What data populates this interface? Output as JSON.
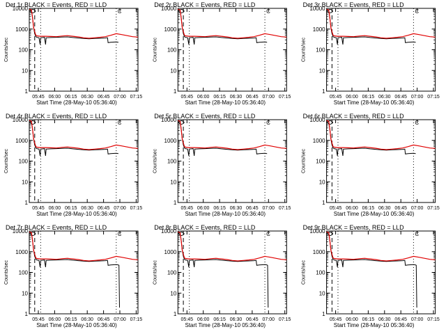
{
  "chart_data": [
    {
      "type": "line",
      "title": "Det 1r BLACK = Events, RED = LLD",
      "xlabel": "Start Time (28-May-10 05:36:40)",
      "ylabel": "Counts/sec",
      "xticks": [
        "05:45",
        "06:00",
        "06:15",
        "06:30",
        "06:45",
        "07:00",
        "07:15"
      ],
      "yticks": [
        "1",
        "10",
        "100",
        "1000",
        "10000"
      ],
      "ylim": [
        1,
        10000
      ],
      "yscale": "log",
      "x_minutes": [
        0,
        100
      ],
      "dashed_x": 5,
      "dotted_x": [
        10.5,
        80
      ],
      "series": [
        {
          "name": "Events",
          "color": "#000000"
        },
        {
          "name": "LLD",
          "color": "#e00000"
        }
      ]
    },
    {
      "type": "line",
      "title": "Det 2r BLACK = Events, RED = LLD",
      "xlabel": "Start Time (28-May-10 05:36:40)",
      "ylabel": "Counts/sec",
      "xticks": [
        "05:45",
        "06:00",
        "06:15",
        "06:30",
        "06:45",
        "07:00",
        "07:15"
      ],
      "yticks": [
        "1",
        "10",
        "100",
        "1000",
        "10000"
      ],
      "ylim": [
        1,
        10000
      ],
      "yscale": "log",
      "x_minutes": [
        0,
        100
      ],
      "dashed_x": 5,
      "dotted_x": [
        10.5,
        80
      ],
      "series": [
        {
          "name": "Events",
          "color": "#000000"
        },
        {
          "name": "LLD",
          "color": "#e00000"
        }
      ]
    },
    {
      "type": "line",
      "title": "Det 3r BLACK = Events, RED = LLD",
      "xlabel": "Start Time (28-May-10 05:36:40)",
      "ylabel": "Counts/sec",
      "xticks": [
        "05:45",
        "06:00",
        "06:15",
        "06:30",
        "06:45",
        "07:00",
        "07:15"
      ],
      "yticks": [
        "1",
        "10",
        "100",
        "1000",
        "10000"
      ],
      "ylim": [
        1,
        10000
      ],
      "yscale": "log",
      "x_minutes": [
        0,
        100
      ],
      "dashed_x": 5,
      "dotted_x": [
        10.5,
        80
      ],
      "series": [
        {
          "name": "Events",
          "color": "#000000"
        },
        {
          "name": "LLD",
          "color": "#e00000"
        }
      ]
    },
    {
      "type": "line",
      "title": "Det 4r BLACK = Events, RED = LLD",
      "xlabel": "Start Time (28-May-10 05:36:40)",
      "ylabel": "Counts/sec",
      "xticks": [
        "05:45",
        "06:00",
        "06:15",
        "06:30",
        "06:45",
        "07:00",
        "07:15"
      ],
      "yticks": [
        "1",
        "10",
        "100",
        "1000",
        "10000"
      ],
      "ylim": [
        1,
        10000
      ],
      "yscale": "log",
      "x_minutes": [
        0,
        100
      ],
      "dashed_x": 5,
      "dotted_x": [
        10.5,
        80
      ],
      "series": [
        {
          "name": "Events",
          "color": "#000000"
        },
        {
          "name": "LLD",
          "color": "#e00000"
        }
      ]
    },
    {
      "type": "line",
      "title": "Det 5r BLACK = Events, RED = LLD",
      "xlabel": "Start Time (28-May-10 05:36:40)",
      "ylabel": "Counts/sec",
      "xticks": [
        "05:45",
        "06:00",
        "06:15",
        "06:30",
        "06:45",
        "07:00",
        "07:15"
      ],
      "yticks": [
        "1",
        "10",
        "100",
        "1000",
        "10000"
      ],
      "ylim": [
        1,
        10000
      ],
      "yscale": "log",
      "x_minutes": [
        0,
        100
      ],
      "dashed_x": 5,
      "dotted_x": [
        10.5,
        80
      ],
      "series": [
        {
          "name": "Events",
          "color": "#000000"
        },
        {
          "name": "LLD",
          "color": "#e00000"
        }
      ]
    },
    {
      "type": "line",
      "title": "Det 6r BLACK = Events, RED = LLD",
      "xlabel": "Start Time (28-May-10 05:36:40)",
      "ylabel": "Counts/sec",
      "xticks": [
        "05:45",
        "06:00",
        "06:15",
        "06:30",
        "06:45",
        "07:00",
        "07:15"
      ],
      "yticks": [
        "1",
        "10",
        "100",
        "1000",
        "10000"
      ],
      "ylim": [
        1,
        10000
      ],
      "yscale": "log",
      "x_minutes": [
        0,
        100
      ],
      "dashed_x": 5,
      "dotted_x": [
        10.5,
        80
      ],
      "series": [
        {
          "name": "Events",
          "color": "#000000"
        },
        {
          "name": "LLD",
          "color": "#e00000"
        }
      ]
    },
    {
      "type": "line",
      "title": "Det 7r BLACK = Events, RED = LLD",
      "xlabel": "Start Time (28-May-10 05:36:40)",
      "ylabel": "Counts/sec",
      "xticks": [
        "05:45",
        "06:00",
        "06:15",
        "06:30",
        "06:45",
        "07:00",
        "07:15"
      ],
      "yticks": [
        "1",
        "10",
        "100",
        "1000",
        "10000"
      ],
      "ylim": [
        1,
        10000
      ],
      "yscale": "log",
      "x_minutes": [
        0,
        100
      ],
      "dashed_x": 5,
      "dotted_x": [
        10.5,
        80
      ],
      "series": [
        {
          "name": "Events",
          "color": "#000000"
        },
        {
          "name": "LLD",
          "color": "#e00000"
        }
      ]
    },
    {
      "type": "line",
      "title": "Det 8r BLACK = Events, RED = LLD",
      "xlabel": "Start Time (28-May-10 05:36:40)",
      "ylabel": "Counts/sec",
      "xticks": [
        "05:45",
        "06:00",
        "06:15",
        "06:30",
        "06:45",
        "07:00",
        "07:15"
      ],
      "yticks": [
        "1",
        "10",
        "100",
        "1000",
        "10000"
      ],
      "ylim": [
        1,
        10000
      ],
      "yscale": "log",
      "x_minutes": [
        0,
        100
      ],
      "dashed_x": 5,
      "dotted_x": [
        10.5,
        80
      ],
      "series": [
        {
          "name": "Events",
          "color": "#000000"
        },
        {
          "name": "LLD",
          "color": "#e00000"
        }
      ]
    },
    {
      "type": "line",
      "title": "Det 9r BLACK = Events, RED = LLD",
      "xlabel": "Start Time (28-May-10 05:36:40)",
      "ylabel": "Counts/sec",
      "xticks": [
        "05:45",
        "06:00",
        "06:15",
        "06:30",
        "06:45",
        "07:00",
        "07:15"
      ],
      "yticks": [
        "1",
        "10",
        "100",
        "1000",
        "10000"
      ],
      "ylim": [
        1,
        10000
      ],
      "yscale": "log",
      "x_minutes": [
        0,
        100
      ],
      "dashed_x": 5,
      "dotted_x": [
        10.5,
        80
      ],
      "series": [
        {
          "name": "Events",
          "color": "#000000"
        },
        {
          "name": "LLD",
          "color": "#e00000"
        }
      ]
    }
  ],
  "series_data": {
    "lld": [
      [
        0,
        9000
      ],
      [
        2,
        8500
      ],
      [
        3,
        3500
      ],
      [
        4,
        1200
      ],
      [
        5,
        750
      ],
      [
        6,
        500
      ],
      [
        7,
        470
      ],
      [
        10,
        450
      ],
      [
        15,
        450
      ],
      [
        20,
        440
      ],
      [
        25,
        430
      ],
      [
        30,
        460
      ],
      [
        35,
        480
      ],
      [
        40,
        450
      ],
      [
        45,
        420
      ],
      [
        50,
        380
      ],
      [
        55,
        360
      ],
      [
        60,
        380
      ],
      [
        65,
        400
      ],
      [
        70,
        430
      ],
      [
        75,
        500
      ],
      [
        80,
        600
      ],
      [
        85,
        540
      ],
      [
        90,
        480
      ],
      [
        95,
        430
      ],
      [
        100,
        410
      ]
    ],
    "events": [
      [
        0,
        9000
      ],
      [
        2,
        8500
      ],
      [
        3,
        3500
      ],
      [
        4,
        1200
      ],
      [
        5,
        600
      ],
      [
        6,
        430
      ],
      [
        7,
        400
      ],
      [
        9,
        380
      ],
      [
        10,
        180
      ],
      [
        10.5,
        380
      ],
      [
        14,
        400
      ],
      [
        15,
        180
      ],
      [
        15.5,
        380
      ],
      [
        20,
        390
      ],
      [
        25,
        400
      ],
      [
        30,
        410
      ],
      [
        35,
        420
      ],
      [
        40,
        390
      ],
      [
        45,
        370
      ],
      [
        50,
        350
      ],
      [
        55,
        340
      ],
      [
        60,
        350
      ],
      [
        65,
        360
      ],
      [
        70,
        370
      ],
      [
        72,
        380
      ],
      [
        72.5,
        220
      ],
      [
        75,
        230
      ],
      [
        80,
        240
      ],
      [
        82,
        230
      ]
    ],
    "events_tail_end": [
      [
        82,
        230
      ],
      [
        82.5,
        220
      ],
      [
        83,
        2
      ]
    ]
  },
  "corner_mark": "C"
}
